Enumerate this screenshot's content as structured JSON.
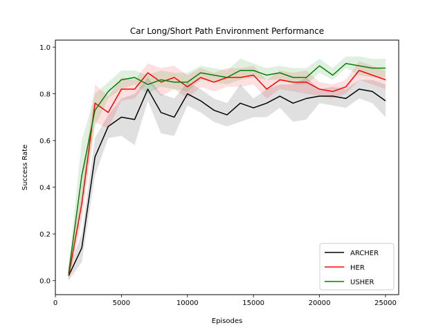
{
  "chart_data": {
    "type": "line",
    "title": "Car Long/Short Path Environment Performance",
    "xlabel": "Episodes",
    "ylabel": "Success Rate",
    "xlim": [
      0,
      26000
    ],
    "ylim": [
      -0.06,
      1.03
    ],
    "xticks": [
      0,
      5000,
      10000,
      15000,
      20000,
      25000
    ],
    "xtick_labels": [
      "0",
      "5000",
      "10000",
      "15000",
      "20000",
      "25000"
    ],
    "yticks": [
      0.0,
      0.2,
      0.4,
      0.6,
      0.8,
      1.0
    ],
    "ytick_labels": [
      "0.0",
      "0.2",
      "0.4",
      "0.6",
      "0.8",
      "1.0"
    ],
    "grid": false,
    "legend": "lower-right",
    "x": [
      1000,
      2000,
      3000,
      4000,
      5000,
      6000,
      7000,
      8000,
      9000,
      10000,
      11000,
      12000,
      13000,
      14000,
      15000,
      16000,
      17000,
      18000,
      19000,
      20000,
      21000,
      22000,
      23000,
      24000,
      25000
    ],
    "series": [
      {
        "name": "ARCHER",
        "color": "#000000",
        "values": [
          0.02,
          0.14,
          0.53,
          0.66,
          0.7,
          0.69,
          0.82,
          0.72,
          0.7,
          0.8,
          0.77,
          0.73,
          0.71,
          0.76,
          0.74,
          0.76,
          0.79,
          0.76,
          0.78,
          0.79,
          0.79,
          0.78,
          0.82,
          0.81,
          0.77
        ],
        "lower": [
          0.0,
          0.08,
          0.45,
          0.61,
          0.62,
          0.58,
          0.77,
          0.63,
          0.62,
          0.75,
          0.72,
          0.68,
          0.66,
          0.68,
          0.7,
          0.7,
          0.74,
          0.68,
          0.69,
          0.76,
          0.75,
          0.74,
          0.78,
          0.76,
          0.7
        ],
        "upper": [
          0.05,
          0.2,
          0.61,
          0.71,
          0.78,
          0.8,
          0.87,
          0.8,
          0.78,
          0.85,
          0.82,
          0.78,
          0.76,
          0.84,
          0.78,
          0.82,
          0.84,
          0.84,
          0.87,
          0.82,
          0.83,
          0.82,
          0.86,
          0.86,
          0.84
        ]
      },
      {
        "name": "HER",
        "color": "#ff0000",
        "values": [
          0.02,
          0.33,
          0.76,
          0.72,
          0.82,
          0.82,
          0.89,
          0.85,
          0.87,
          0.83,
          0.87,
          0.85,
          0.87,
          0.87,
          0.88,
          0.82,
          0.86,
          0.85,
          0.85,
          0.82,
          0.81,
          0.83,
          0.9,
          0.88,
          0.86
        ],
        "lower": [
          0.0,
          0.26,
          0.68,
          0.65,
          0.77,
          0.78,
          0.85,
          0.79,
          0.82,
          0.78,
          0.83,
          0.81,
          0.83,
          0.83,
          0.84,
          0.78,
          0.82,
          0.81,
          0.8,
          0.79,
          0.78,
          0.8,
          0.86,
          0.84,
          0.82
        ],
        "upper": [
          0.05,
          0.4,
          0.84,
          0.79,
          0.87,
          0.86,
          0.93,
          0.91,
          0.92,
          0.88,
          0.91,
          0.89,
          0.91,
          0.91,
          0.92,
          0.86,
          0.9,
          0.89,
          0.9,
          0.85,
          0.84,
          0.86,
          0.94,
          0.92,
          0.9
        ]
      },
      {
        "name": "USHER",
        "color": "#008000",
        "values": [
          0.03,
          0.45,
          0.73,
          0.81,
          0.86,
          0.87,
          0.84,
          0.86,
          0.85,
          0.85,
          0.89,
          0.88,
          0.87,
          0.9,
          0.9,
          0.88,
          0.89,
          0.87,
          0.87,
          0.92,
          0.88,
          0.93,
          0.92,
          0.91,
          0.91
        ],
        "lower": [
          0.0,
          0.32,
          0.66,
          0.78,
          0.82,
          0.84,
          0.8,
          0.83,
          0.82,
          0.81,
          0.86,
          0.85,
          0.84,
          0.86,
          0.87,
          0.86,
          0.86,
          0.84,
          0.84,
          0.89,
          0.86,
          0.91,
          0.88,
          0.87,
          0.87
        ],
        "upper": [
          0.06,
          0.6,
          0.8,
          0.85,
          0.9,
          0.9,
          0.88,
          0.9,
          0.89,
          0.89,
          0.92,
          0.91,
          0.9,
          0.95,
          0.93,
          0.91,
          0.92,
          0.91,
          0.91,
          0.95,
          0.91,
          0.96,
          0.96,
          0.95,
          0.95
        ]
      }
    ]
  }
}
